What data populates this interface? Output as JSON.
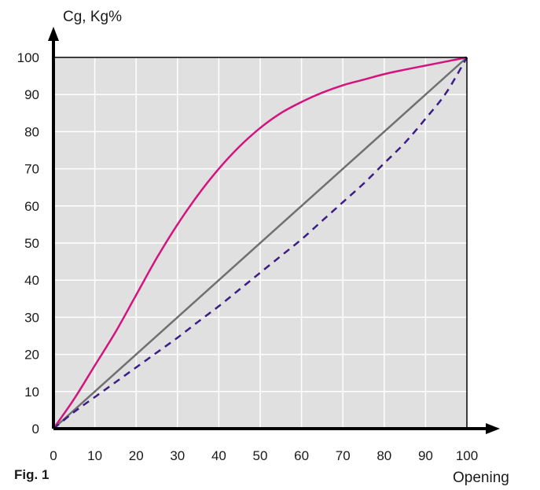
{
  "figure_label": "Fig. 1",
  "chart_data": {
    "type": "line",
    "ylabel": "Cg, Kg%",
    "xlabel": "Opening",
    "xlim": [
      0,
      100
    ],
    "ylim": [
      0,
      100
    ],
    "x_ticks": [
      0,
      10,
      20,
      30,
      40,
      50,
      60,
      70,
      80,
      90,
      100
    ],
    "y_ticks": [
      0,
      10,
      20,
      30,
      40,
      50,
      60,
      70,
      80,
      90,
      100
    ],
    "grid": true,
    "colors": {
      "background": "#e0e0e0",
      "grid": "#ffffff",
      "frame": "#000000"
    },
    "series": [
      {
        "style": "solid",
        "color": "#d4147e",
        "points": [
          [
            0,
            0
          ],
          [
            5,
            8
          ],
          [
            10,
            17
          ],
          [
            15,
            26
          ],
          [
            20,
            36
          ],
          [
            25,
            46
          ],
          [
            30,
            55
          ],
          [
            35,
            63
          ],
          [
            40,
            70
          ],
          [
            45,
            76
          ],
          [
            50,
            81
          ],
          [
            55,
            85
          ],
          [
            60,
            88
          ],
          [
            65,
            90.5
          ],
          [
            70,
            92.5
          ],
          [
            75,
            94
          ],
          [
            80,
            95.5
          ],
          [
            85,
            96.7
          ],
          [
            90,
            97.8
          ],
          [
            95,
            98.9
          ],
          [
            100,
            100
          ]
        ]
      },
      {
        "style": "solid",
        "color": "#707070",
        "points": [
          [
            0,
            0
          ],
          [
            100,
            100
          ]
        ]
      },
      {
        "style": "dashed",
        "color": "#3b1d86",
        "points": [
          [
            0,
            0
          ],
          [
            5,
            4.5
          ],
          [
            10,
            8.5
          ],
          [
            15,
            12.5
          ],
          [
            20,
            16.5
          ],
          [
            25,
            20.5
          ],
          [
            30,
            24.5
          ],
          [
            35,
            28.8
          ],
          [
            40,
            33
          ],
          [
            45,
            37.5
          ],
          [
            50,
            42
          ],
          [
            55,
            46.5
          ],
          [
            60,
            51
          ],
          [
            65,
            56
          ],
          [
            70,
            61
          ],
          [
            75,
            66
          ],
          [
            80,
            71.5
          ],
          [
            85,
            77
          ],
          [
            90,
            83.5
          ],
          [
            95,
            90.5
          ],
          [
            100,
            100
          ]
        ]
      }
    ]
  }
}
